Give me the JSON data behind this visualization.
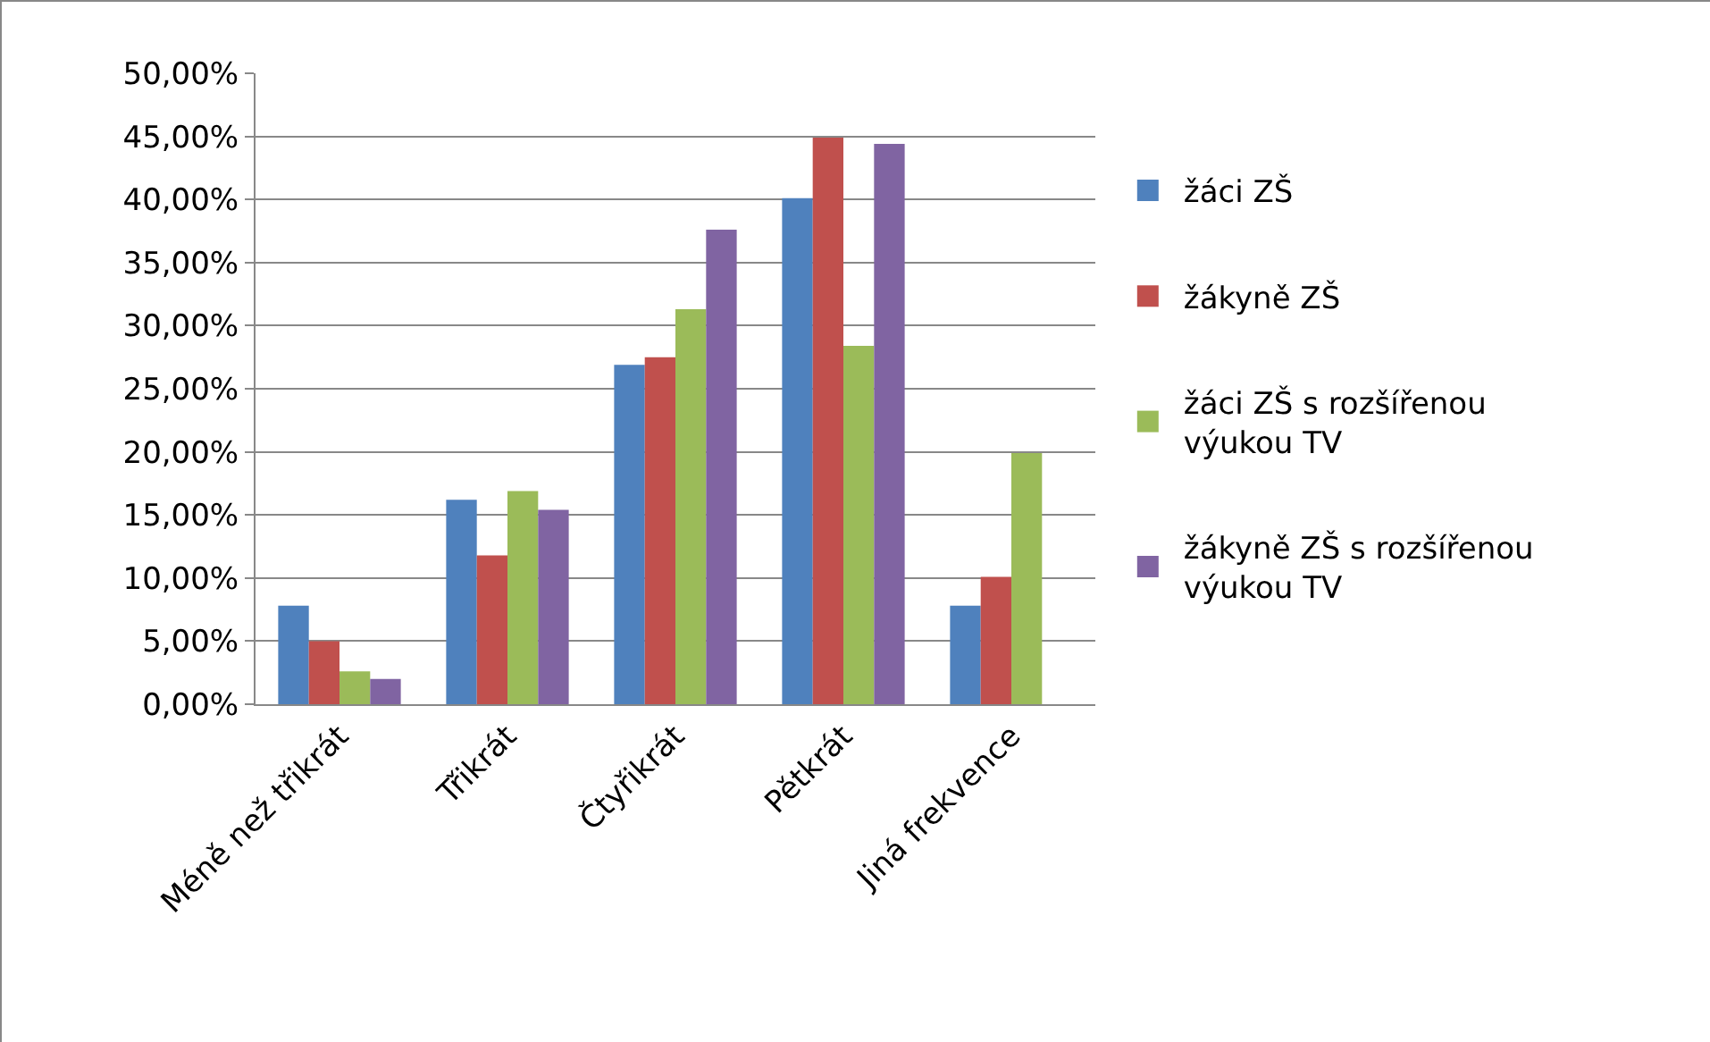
{
  "chart_data": {
    "type": "bar",
    "categories": [
      "Méně než třikrát",
      "Třikrát",
      "Čtyřikrát",
      "Pětkrát",
      "Jiná frekvence"
    ],
    "series": [
      {
        "name": "žáci ZŠ",
        "color": "#4f81bd",
        "values": [
          7.8,
          16.2,
          26.9,
          40.1,
          7.8
        ]
      },
      {
        "name": "žákyně ZŠ",
        "color": "#c0504d",
        "values": [
          5.0,
          11.8,
          27.5,
          44.9,
          10.1
        ]
      },
      {
        "name": "žáci ZŠ s rozšířenou výukou TV",
        "color": "#9bbb59",
        "values": [
          2.6,
          16.9,
          31.3,
          28.4,
          19.9
        ]
      },
      {
        "name": "žákyně ZŠ s rozšířenou výukou TV",
        "color": "#8064a2",
        "values": [
          2.0,
          15.4,
          37.6,
          44.4,
          null
        ]
      }
    ],
    "ylim": [
      0,
      50
    ],
    "yticks": [
      {
        "value": 0,
        "label": "0,00%"
      },
      {
        "value": 5,
        "label": "5,00%"
      },
      {
        "value": 10,
        "label": "10,00%"
      },
      {
        "value": 15,
        "label": "15,00%"
      },
      {
        "value": 20,
        "label": "20,00%"
      },
      {
        "value": 25,
        "label": "25,00%"
      },
      {
        "value": 30,
        "label": "30,00%"
      },
      {
        "value": 35,
        "label": "35,00%"
      },
      {
        "value": 40,
        "label": "40,00%"
      },
      {
        "value": 45,
        "label": "45,00%"
      },
      {
        "value": 50,
        "label": "50,00%"
      }
    ],
    "grid": "y",
    "legend": "right"
  }
}
